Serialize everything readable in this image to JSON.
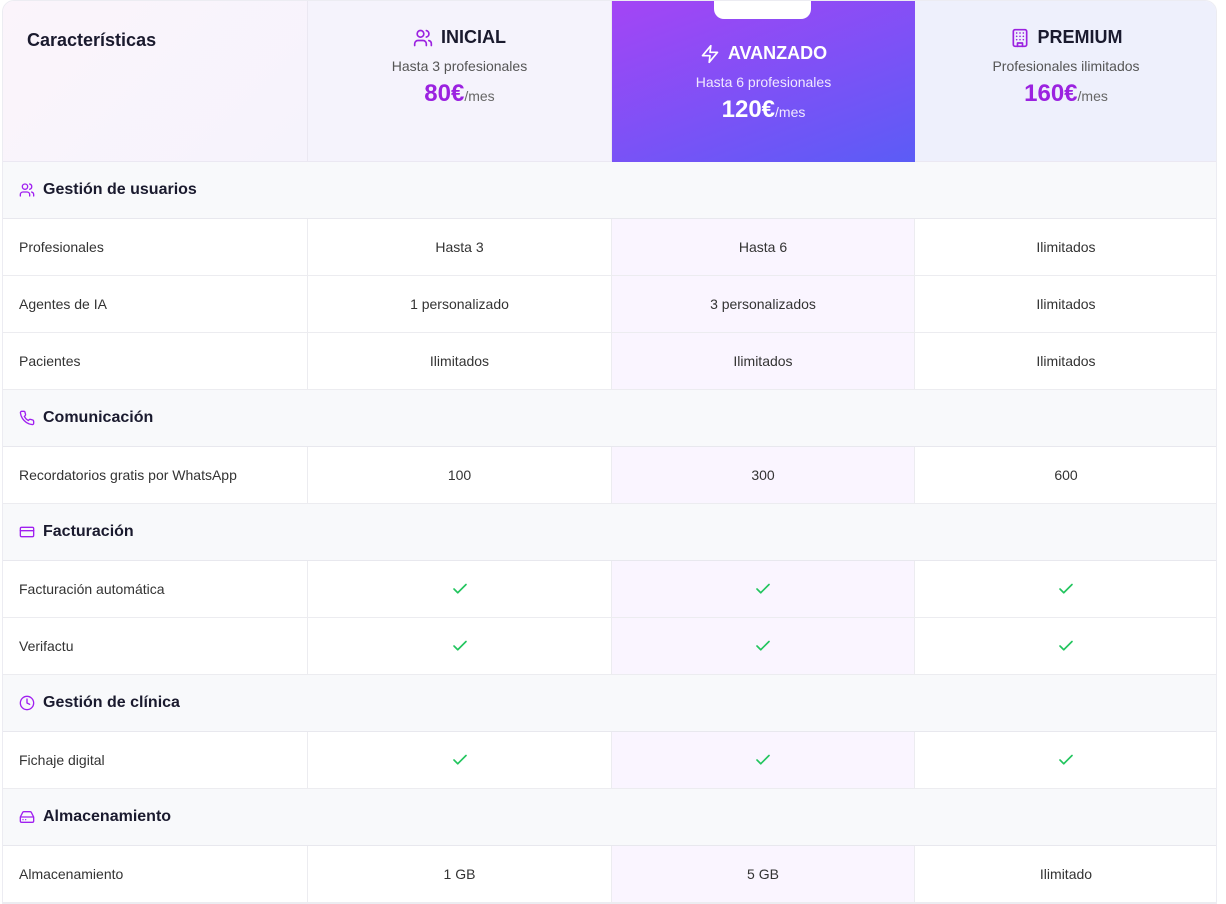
{
  "header": {
    "features_label": "Características"
  },
  "plans": [
    {
      "name": "INICIAL",
      "subtitle": "Hasta 3 profesionales",
      "price": "80€",
      "period": "/mes"
    },
    {
      "name": "AVANZADO",
      "subtitle": "Hasta 6 profesionales",
      "price": "120€",
      "period": "/mes"
    },
    {
      "name": "PREMIUM",
      "subtitle": "Profesionales ilimitados",
      "price": "160€",
      "period": "/mes"
    }
  ],
  "sections": [
    {
      "title": "Gestión de usuarios",
      "rows": [
        {
          "label": "Profesionales",
          "values": [
            "Hasta 3",
            "Hasta 6",
            "Ilimitados"
          ]
        },
        {
          "label": "Agentes de IA",
          "values": [
            "1 personalizado",
            "3 personalizados",
            "Ilimitados"
          ]
        },
        {
          "label": "Pacientes",
          "values": [
            "Ilimitados",
            "Ilimitados",
            "Ilimitados"
          ]
        }
      ]
    },
    {
      "title": "Comunicación",
      "rows": [
        {
          "label": "Recordatorios gratis por WhatsApp",
          "values": [
            "100",
            "300",
            "600"
          ]
        }
      ]
    },
    {
      "title": "Facturación",
      "rows": [
        {
          "label": "Facturación automática",
          "values": [
            true,
            true,
            true
          ]
        },
        {
          "label": "Verifactu",
          "values": [
            true,
            true,
            true
          ]
        }
      ]
    },
    {
      "title": "Gestión de clínica",
      "rows": [
        {
          "label": "Fichaje digital",
          "values": [
            true,
            true,
            true
          ]
        }
      ]
    },
    {
      "title": "Almacenamiento",
      "rows": [
        {
          "label": "Almacenamiento",
          "values": [
            "1 GB",
            "5 GB",
            "Ilimitado"
          ]
        }
      ]
    }
  ]
}
